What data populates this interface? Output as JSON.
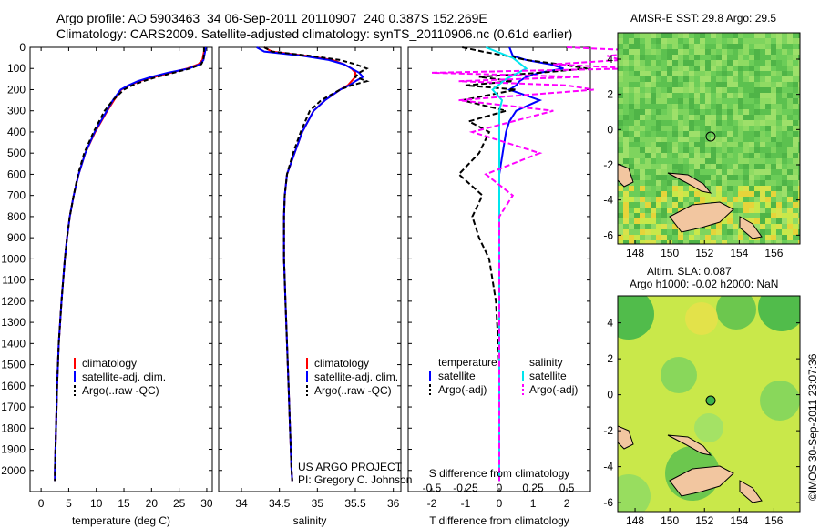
{
  "header": {
    "line1": "Argo profile: AO 5903463_34 06-Sep-2011 20110907_240 0.387S 152.269E",
    "line2": "Climatology: CARS2009. Satellite-adjusted climatology: synTS_20110906.nc (0.61d earlier)"
  },
  "footer": {
    "project": "US ARGO PROJECT",
    "pi": "PI: Gregory C. Johnson",
    "timestamp": "©IMOS 30-Sep-2011 23:07:36"
  },
  "colors": {
    "climatology": "#ff0000",
    "satellite": "#0000ff",
    "argo": "#000000",
    "salinity_sat": "#00e5ee",
    "salinity_argo": "#ff00ff",
    "sea_green": "#3cb44b",
    "land": "#f2c6a0"
  },
  "chart_data": [
    {
      "id": "temperature",
      "type": "line",
      "xlabel": "temperature (deg C)",
      "ylabel": "",
      "xlim": [
        -2,
        31
      ],
      "ylim": [
        2100,
        0
      ],
      "xticks": [
        "0",
        "5",
        "10",
        "15",
        "20",
        "25",
        "30"
      ],
      "yticks": [
        "0",
        "100",
        "200",
        "300",
        "400",
        "500",
        "600",
        "700",
        "800",
        "900",
        "1000",
        "1100",
        "1200",
        "1300",
        "1400",
        "1500",
        "1600",
        "1700",
        "1800",
        "1900",
        "2000"
      ],
      "legend": [
        "climatology",
        "satellite-adj. clim.",
        "Argo(..raw -QC)"
      ],
      "series": [
        {
          "name": "climatology",
          "color": "#ff0000",
          "dash": "",
          "depth": [
            0,
            20,
            60,
            80,
            100,
            120,
            140,
            160,
            180,
            200,
            250,
            300,
            400,
            500,
            600,
            700,
            800,
            900,
            1000,
            1200,
            1400,
            1600,
            1800,
            2000,
            2050
          ],
          "values": [
            29.6,
            29.5,
            29.2,
            28.5,
            26.5,
            23.5,
            20.5,
            17.8,
            16,
            14.5,
            13.2,
            12,
            9.8,
            8,
            6.8,
            5.9,
            5.2,
            4.7,
            4.3,
            3.7,
            3.2,
            2.9,
            2.7,
            2.5,
            2.5
          ]
        },
        {
          "name": "satellite-adj. clim.",
          "color": "#0000ff",
          "dash": "",
          "depth": [
            0,
            20,
            60,
            80,
            100,
            120,
            140,
            160,
            180,
            200,
            250,
            300,
            400,
            500,
            600,
            700,
            800,
            900,
            1000,
            1200,
            1400,
            1600,
            1800,
            2000,
            2050
          ],
          "values": [
            29.8,
            29.7,
            29.4,
            28.8,
            26.8,
            23,
            20,
            17.5,
            15.8,
            14.4,
            13,
            11.9,
            9.7,
            8,
            6.8,
            5.9,
            5.2,
            4.7,
            4.3,
            3.7,
            3.2,
            2.9,
            2.7,
            2.5,
            2.5
          ]
        },
        {
          "name": "Argo(..raw -QC)",
          "color": "#000000",
          "dash": "5,3",
          "depth": [
            0,
            20,
            60,
            80,
            100,
            120,
            140,
            160,
            180,
            200,
            250,
            300,
            400,
            500,
            600,
            700,
            800,
            900,
            1000,
            1200,
            1400,
            1600,
            1800,
            2000,
            2050
          ],
          "values": [
            29.5,
            29.5,
            29.4,
            29,
            27,
            24,
            21,
            18.5,
            16.5,
            15,
            13,
            11.5,
            9.5,
            7.8,
            6.7,
            5.9,
            5.2,
            4.7,
            4.3,
            3.7,
            3.2,
            2.9,
            2.7,
            2.5,
            2.5
          ]
        }
      ]
    },
    {
      "id": "salinity",
      "type": "line",
      "xlabel": "salinity",
      "ylabel": "",
      "xlim": [
        33.7,
        36.1
      ],
      "ylim": [
        2100,
        0
      ],
      "xticks": [
        "34",
        "34.5",
        "35",
        "35.5",
        "36"
      ],
      "yticks": [],
      "legend": [
        "climatology",
        "satellite-adj. clim.",
        "Argo(..raw -QC)"
      ],
      "series": [
        {
          "name": "climatology",
          "color": "#ff0000",
          "dash": "",
          "depth": [
            0,
            20,
            40,
            60,
            80,
            100,
            120,
            140,
            160,
            180,
            200,
            250,
            300,
            400,
            500,
            600,
            700,
            800,
            1000,
            1200,
            1400,
            1600,
            1800,
            2000,
            2050
          ],
          "values": [
            34.3,
            34.4,
            34.85,
            35.2,
            35.35,
            35.45,
            35.5,
            35.5,
            35.45,
            35.4,
            35.3,
            35.1,
            34.95,
            34.8,
            34.7,
            34.6,
            34.57,
            34.56,
            34.56,
            34.58,
            34.6,
            34.62,
            34.64,
            34.66,
            34.67
          ]
        },
        {
          "name": "satellite-adj. clim.",
          "color": "#0000ff",
          "dash": "",
          "depth": [
            0,
            20,
            40,
            60,
            80,
            100,
            120,
            140,
            160,
            180,
            200,
            250,
            300,
            400,
            500,
            600,
            700,
            800,
            1000,
            1200,
            1400,
            1600,
            1800,
            2000,
            2050
          ],
          "values": [
            34.2,
            34.3,
            34.8,
            35.15,
            35.35,
            35.45,
            35.55,
            35.6,
            35.5,
            35.42,
            35.3,
            35.1,
            34.95,
            34.8,
            34.7,
            34.6,
            34.57,
            34.56,
            34.56,
            34.58,
            34.6,
            34.62,
            34.64,
            34.66,
            34.67
          ]
        },
        {
          "name": "Argo(..raw -QC)",
          "color": "#000000",
          "dash": "5,3",
          "depth": [
            0,
            20,
            40,
            60,
            80,
            100,
            120,
            140,
            160,
            180,
            200,
            250,
            300,
            400,
            500,
            600,
            700,
            800,
            1000,
            1200,
            1400,
            1600,
            1800,
            2000,
            2050
          ],
          "values": [
            34.3,
            34.4,
            34.9,
            35.3,
            35.5,
            35.65,
            35.55,
            35.5,
            35.65,
            35.45,
            35.3,
            35.05,
            34.9,
            34.78,
            34.68,
            34.6,
            34.57,
            34.56,
            34.56,
            34.58,
            34.6,
            34.62,
            34.64,
            34.66,
            34.67
          ]
        }
      ]
    },
    {
      "id": "difference",
      "type": "line",
      "xlabel": "T difference from climatology",
      "xlabel2": "S difference from climatology",
      "xlim": [
        -2.7,
        2.7
      ],
      "ylim": [
        2100,
        0
      ],
      "xticks": [
        "-2",
        "-1",
        "0",
        "1",
        "2"
      ],
      "xticks2": [
        "-0.5",
        "-0.25",
        "0",
        "0.25",
        "0.5"
      ],
      "legend_temperature": [
        "temperature",
        "satellite",
        "Argo(-adj)"
      ],
      "legend_salinity": [
        "salinity",
        "satellite",
        "Argo(-adj)"
      ],
      "series": [
        {
          "name": "temperature satellite",
          "color": "#0000ff",
          "dash": "",
          "depth": [
            0,
            40,
            60,
            80,
            100,
            120,
            140,
            160,
            180,
            200,
            250,
            300,
            350,
            400,
            500,
            600,
            800,
            1000,
            1500,
            2050
          ],
          "values": [
            0.3,
            0.4,
            0.8,
            1.5,
            1.9,
            1.2,
            0.8,
            0.6,
            0.5,
            0.3,
            1.2,
            0.5,
            0.3,
            0.2,
            0.1,
            0,
            0,
            0,
            0,
            0
          ]
        },
        {
          "name": "temperature Argo(-adj)",
          "color": "#000000",
          "dash": "6,3",
          "depth": [
            0,
            20,
            40,
            60,
            80,
            100,
            120,
            140,
            160,
            180,
            200,
            250,
            300,
            350,
            400,
            500,
            600,
            700,
            800,
            900,
            1000,
            1100,
            1200,
            1500,
            2000,
            2050
          ],
          "values": [
            -1.1,
            -0.5,
            0.2,
            0.8,
            1.8,
            2.6,
            1.2,
            -0.6,
            0.4,
            -1,
            0.5,
            -1.1,
            0.2,
            -0.9,
            -0.3,
            -0.6,
            -1.2,
            -0.5,
            -0.8,
            -0.6,
            -0.3,
            -0.2,
            -0.1,
            0,
            0,
            0
          ]
        },
        {
          "name": "salinity satellite",
          "color": "#00e5ee",
          "dash": "",
          "depth": [
            0,
            50,
            100,
            150,
            200,
            250,
            300,
            400,
            500,
            600,
            800,
            1000,
            1500,
            2050
          ],
          "values": [
            -0.1,
            0.1,
            0.2,
            0.05,
            -0.05,
            0.02,
            0,
            0,
            0,
            0,
            0,
            0,
            0,
            0
          ]
        },
        {
          "name": "salinity Argo(-adj)",
          "color": "#ff00ff",
          "dash": "6,3",
          "depth": [
            0,
            20,
            40,
            60,
            80,
            100,
            120,
            140,
            160,
            180,
            200,
            250,
            300,
            400,
            500,
            600,
            700,
            800,
            1000,
            2050
          ],
          "values": [
            0.5,
            1.2,
            0.8,
            0.9,
            0.4,
            1,
            -0.5,
            0.6,
            -0.3,
            0.5,
            0.7,
            -0.3,
            0.4,
            -0.2,
            0.3,
            -0.1,
            0.1,
            0,
            0,
            0
          ]
        }
      ]
    },
    {
      "id": "map-sst",
      "type": "heatmap",
      "title": "AMSR-E SST: 29.8 Argo: 29.5",
      "xticks": [
        "148",
        "150",
        "152",
        "154",
        "156"
      ],
      "yticks": [
        "4",
        "2",
        "0",
        "-2",
        "-4",
        "-6"
      ],
      "xlim": [
        147,
        157.5
      ],
      "ylim": [
        -6.5,
        5.5
      ],
      "argo_position": {
        "lon": 152.269,
        "lat": -0.387
      }
    },
    {
      "id": "map-sla",
      "type": "heatmap",
      "title": "Altim. SLA: 0.087",
      "subtitle": "Argo h1000: -0.02 h2000: NaN",
      "xticks": [
        "148",
        "150",
        "152",
        "154",
        "156"
      ],
      "yticks": [
        "4",
        "2",
        "0",
        "-2",
        "-4",
        "-6"
      ],
      "xlim": [
        147,
        157.5
      ],
      "ylim": [
        -6.5,
        5.5
      ],
      "argo_position": {
        "lon": 152.269,
        "lat": -0.387
      }
    }
  ]
}
